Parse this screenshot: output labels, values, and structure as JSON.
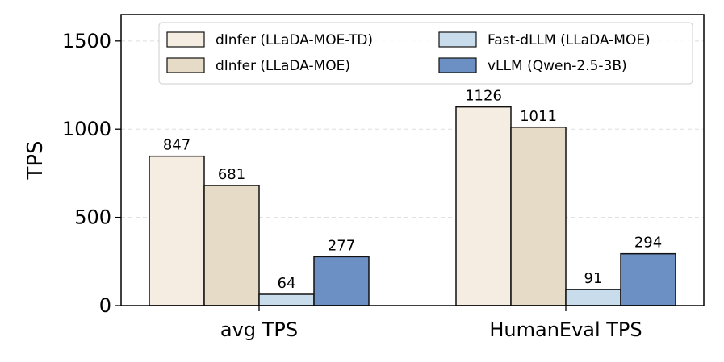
{
  "chart_data": {
    "type": "bar",
    "categories": [
      "avg TPS",
      "HumanEval TPS"
    ],
    "series": [
      {
        "name": "dInfer (LLaDA-MOE-TD)",
        "values": [
          847,
          1126
        ],
        "color": "#f5ede2"
      },
      {
        "name": "dInfer (LLaDA-MOE)",
        "values": [
          681,
          1011
        ],
        "color": "#e6dbc6"
      },
      {
        "name": "Fast-dLLM (LLaDA-MOE)",
        "values": [
          64,
          91
        ],
        "color": "#c9dcec"
      },
      {
        "name": "vLLM (Qwen-2.5-3B)",
        "values": [
          277,
          294
        ],
        "color": "#6d90c4"
      }
    ],
    "title": "",
    "xlabel": "",
    "ylabel": "TPS",
    "ylim": [
      0,
      1650
    ],
    "yticks": [
      0,
      500,
      1000,
      1500
    ],
    "grid": "horizontal dashed",
    "legend": "top, 2 columns"
  }
}
